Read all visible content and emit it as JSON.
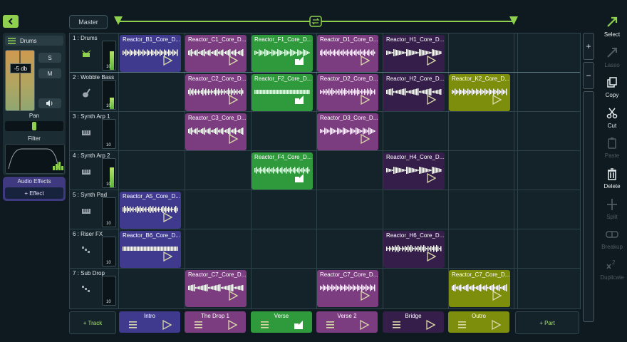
{
  "header": {
    "master_label": "Master"
  },
  "colors": {
    "purple": "#3f3a8d",
    "magenta": "#7b3c80",
    "green": "#2e9a3c",
    "dark_purple": "#351e4a",
    "olive": "#7d8d0c",
    "accent": "#8fd14f"
  },
  "mixer": {
    "track_name": "Drums",
    "volume": "-5 db",
    "solo": "S",
    "mute": "M",
    "pan_label": "Pan",
    "filter_label": "Filter",
    "audio_effects_label": "Audio Effects",
    "add_effect_label": "+ Effect"
  },
  "tracks": [
    {
      "label": "1 : Drums",
      "icon": "drum-icon"
    },
    {
      "label": "2 : Wobble Bass",
      "icon": "guitar-icon"
    },
    {
      "label": "3 : Synth Arp 1",
      "icon": "keyboard-icon"
    },
    {
      "label": "4 : Synth Arp 2",
      "icon": "keyboard-icon"
    },
    {
      "label": "5 : Synth Pad",
      "icon": "keyboard-icon"
    },
    {
      "label": "6 : Riser FX",
      "icon": "riser-icon"
    },
    {
      "label": "7 : Sub Drop",
      "icon": "riser-icon"
    }
  ],
  "meter_scale": "10",
  "clips": [
    {
      "row": 0,
      "col": 0,
      "name": "Reactor_B1_Core_D...",
      "color": "purple",
      "state": "play"
    },
    {
      "row": 0,
      "col": 1,
      "name": "Reactor_C1_Core_D...",
      "color": "magenta",
      "state": "play"
    },
    {
      "row": 0,
      "col": 2,
      "name": "Reactor_F1_Core_D...",
      "color": "green",
      "state": "active"
    },
    {
      "row": 0,
      "col": 3,
      "name": "Reactor_D1_Core_D...",
      "color": "magenta",
      "state": "play"
    },
    {
      "row": 0,
      "col": 4,
      "name": "Reactor_H1_Core_D...",
      "color": "dark_purple",
      "state": "play"
    },
    {
      "row": 1,
      "col": 1,
      "name": "Reactor_C2_Core_D...",
      "color": "magenta",
      "state": "play"
    },
    {
      "row": 1,
      "col": 2,
      "name": "Reactor_F2_Core_D...",
      "color": "green",
      "state": "active"
    },
    {
      "row": 1,
      "col": 3,
      "name": "Reactor_D2_Core_D...",
      "color": "magenta",
      "state": "play"
    },
    {
      "row": 1,
      "col": 4,
      "name": "Reactor_H2_Core_D...",
      "color": "dark_purple",
      "state": "play"
    },
    {
      "row": 1,
      "col": 5,
      "name": "Reactor_K2_Core_D...",
      "color": "olive",
      "state": "play"
    },
    {
      "row": 2,
      "col": 1,
      "name": "Reactor_C3_Core_D...",
      "color": "magenta",
      "state": "play"
    },
    {
      "row": 2,
      "col": 3,
      "name": "Reactor_D3_Core_D...",
      "color": "magenta",
      "state": "play"
    },
    {
      "row": 3,
      "col": 2,
      "name": "Reactor_F4_Core_D...",
      "color": "green",
      "state": "active"
    },
    {
      "row": 3,
      "col": 4,
      "name": "Reactor_H4_Core_D...",
      "color": "dark_purple",
      "state": "play"
    },
    {
      "row": 4,
      "col": 0,
      "name": "Reactor_A5_Core_D...",
      "color": "purple",
      "state": "play"
    },
    {
      "row": 5,
      "col": 0,
      "name": "Reactor_B6_Core_D...",
      "color": "purple",
      "state": "play"
    },
    {
      "row": 5,
      "col": 4,
      "name": "Reactor_H6_Core_D...",
      "color": "dark_purple",
      "state": "play"
    },
    {
      "row": 6,
      "col": 1,
      "name": "Reactor_C7_Core_D...",
      "color": "magenta",
      "state": "play"
    },
    {
      "row": 6,
      "col": 3,
      "name": "Reactor_C7_Core_D...",
      "color": "magenta",
      "state": "play"
    },
    {
      "row": 6,
      "col": 5,
      "name": "Reactor_C7_Core_D...",
      "color": "olive",
      "state": "play"
    }
  ],
  "parts": [
    {
      "label": "Intro",
      "color": "purple",
      "state": "play"
    },
    {
      "label": "The Drop 1",
      "color": "magenta",
      "state": "play"
    },
    {
      "label": "Verse",
      "color": "green",
      "state": "active"
    },
    {
      "label": "Verse 2",
      "color": "magenta",
      "state": "play"
    },
    {
      "label": "Bridge",
      "color": "dark_purple",
      "state": "play"
    },
    {
      "label": "Outro",
      "color": "olive",
      "state": "play"
    }
  ],
  "add_track_label": "+ Track",
  "add_part_label": "+ Part",
  "zoom": {
    "in": "+",
    "out": "−"
  },
  "tools": [
    {
      "label": "Select",
      "icon": "arrow-icon",
      "enabled": true
    },
    {
      "label": "Lasso",
      "icon": "lasso-icon",
      "enabled": false
    },
    {
      "label": "Copy",
      "icon": "copy-icon",
      "enabled": true
    },
    {
      "label": "Cut",
      "icon": "scissors-icon",
      "enabled": true
    },
    {
      "label": "Paste",
      "icon": "paste-icon",
      "enabled": false
    },
    {
      "label": "Delete",
      "icon": "trash-icon",
      "enabled": true
    },
    {
      "label": "Split",
      "icon": "split-icon",
      "enabled": false
    },
    {
      "label": "Breakup",
      "icon": "breakup-icon",
      "enabled": false
    },
    {
      "label": "Duplicate",
      "icon": "duplicate-icon",
      "enabled": false
    }
  ]
}
